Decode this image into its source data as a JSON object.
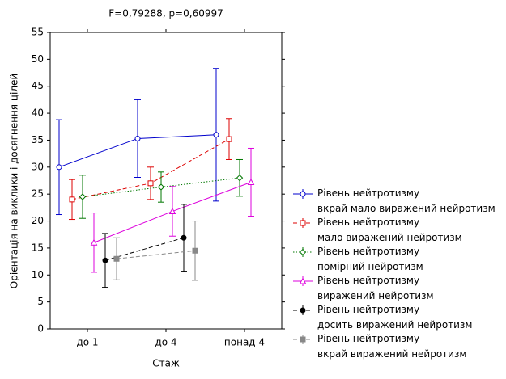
{
  "chart_data": {
    "type": "line",
    "title": "F=0,79288, p=0,60997",
    "xlabel": "Стаж",
    "ylabel": "Орієнтація на виклики і досягнення цілей",
    "categories": [
      "до 1",
      "до 4",
      "понад 4"
    ],
    "ylim": [
      0,
      55
    ],
    "yticks": [
      0,
      5,
      10,
      15,
      20,
      25,
      30,
      35,
      40,
      45,
      50,
      55
    ],
    "grid": false,
    "legend": "right",
    "series": [
      {
        "name": "Рівень нейтротизму\nвкрай мало виражений нейротизм",
        "color": "#0000cc",
        "line": "solid",
        "marker": "circle-open",
        "values": [
          30,
          35.3,
          36
        ],
        "errors": [
          8.8,
          7.2,
          12.3
        ]
      },
      {
        "name": "Рівень нейтротизму\nмало виражений нейротизм",
        "color": "#dd0000",
        "line": "dashed",
        "marker": "square-open",
        "values": [
          24,
          27,
          35.2
        ],
        "errors": [
          3.7,
          3,
          3.8
        ]
      },
      {
        "name": "Рівень нейтротизму\nпомірний нейротизм",
        "color": "#007700",
        "line": "dotted",
        "marker": "diamond-open",
        "values": [
          24.5,
          26.3,
          28
        ],
        "errors": [
          4,
          2.8,
          3.4
        ]
      },
      {
        "name": "Рівень нейтротизму\nвиражений нейротизм",
        "color": "#dd00dd",
        "line": "solid",
        "marker": "triangle-open",
        "values": [
          16,
          21.8,
          27.2
        ],
        "errors": [
          5.5,
          4.6,
          6.3
        ]
      },
      {
        "name": "Рівень нейтротизму\nдосить виражений нейротизм",
        "color": "#000000",
        "line": "dashed",
        "marker": "circle-filled",
        "values": [
          12.7,
          16.9,
          null
        ],
        "errors": [
          5,
          6.2,
          null
        ]
      },
      {
        "name": "Рівень нейтротизму\nвкрай виражений нейротизм",
        "color": "#888888",
        "line": "dashed",
        "marker": "square-filled",
        "values": [
          13,
          14.5,
          null
        ],
        "errors": [
          3.9,
          5.5,
          null
        ]
      }
    ]
  }
}
